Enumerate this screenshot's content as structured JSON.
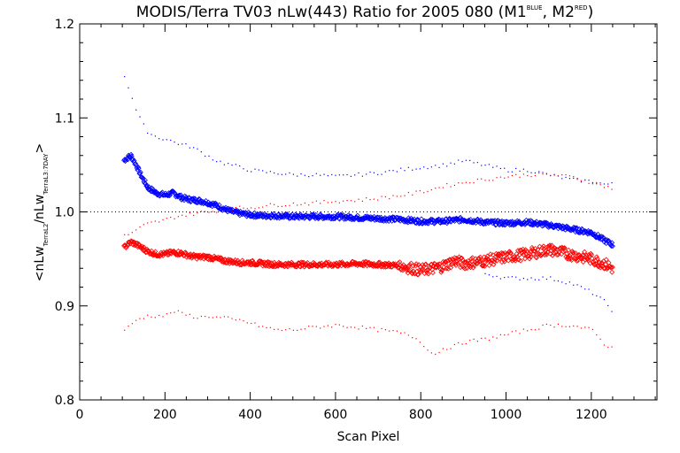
{
  "chart_data": {
    "type": "scatter",
    "title": {
      "main": "MODIS/Terra TV03 nLw(443) Ratio for 2005 080 (M1",
      "sup1": "BLUE",
      "mid": ", M2",
      "sup2": "RED",
      "end": ")"
    },
    "xlabel": "Scan Pixel",
    "ylabel": {
      "open": "<nLw",
      "sub1": "TerraL2",
      "slash": "/nLw",
      "sub2": "TerraL3:7DAY",
      "close": ">"
    },
    "xlim": [
      0,
      1354
    ],
    "ylim": [
      0.8,
      1.2
    ],
    "xticks": [
      "0",
      "200",
      "400",
      "600",
      "800",
      "1000",
      "1200"
    ],
    "xtick_values": [
      0,
      200,
      400,
      600,
      800,
      1000,
      1200
    ],
    "yticks": [
      "0.8",
      "0.9",
      "1.0",
      "1.1",
      "1.2"
    ],
    "ytick_values": [
      0.8,
      0.9,
      1.0,
      1.1,
      1.2
    ],
    "reference_line": 1.0,
    "series": [
      {
        "color": "#0000ff",
        "marker": "diamond",
        "x": [
          104,
          120,
          130,
          145,
          160,
          180,
          200,
          220,
          240,
          260,
          280,
          300,
          320,
          340,
          360,
          380,
          400,
          430,
          460,
          500,
          550,
          600,
          650,
          700,
          750,
          800,
          850,
          900,
          950,
          1000,
          1050,
          1100,
          1150,
          1200,
          1230,
          1250
        ],
        "y": [
          1.055,
          1.06,
          1.052,
          1.038,
          1.026,
          1.02,
          1.018,
          1.02,
          1.015,
          1.013,
          1.012,
          1.01,
          1.007,
          1.003,
          1.0,
          0.998,
          0.997,
          0.996,
          0.996,
          0.995,
          0.995,
          0.995,
          0.994,
          0.993,
          0.992,
          0.99,
          0.99,
          0.992,
          0.989,
          0.988,
          0.989,
          0.986,
          0.982,
          0.978,
          0.97,
          0.965
        ],
        "upper": [
          1.145,
          1.125,
          1.11,
          1.095,
          1.085,
          1.08,
          1.078,
          1.075,
          1.072,
          1.07,
          1.065,
          1.06,
          1.055,
          1.052,
          1.05,
          1.047,
          1.045,
          1.043,
          1.042,
          1.04,
          1.04,
          1.038,
          1.04,
          1.042,
          1.045,
          1.048,
          1.05,
          1.055,
          1.05,
          1.045,
          1.045,
          1.04,
          1.035,
          1.033,
          1.03,
          1.03
        ],
        "lower": [
          null,
          null,
          null,
          null,
          null,
          null,
          null,
          null,
          null,
          null,
          null,
          null,
          null,
          null,
          null,
          null,
          null,
          null,
          null,
          null,
          null,
          null,
          null,
          null,
          null,
          null,
          null,
          null,
          0.935,
          0.93,
          0.93,
          0.93,
          0.925,
          0.915,
          0.905,
          0.895
        ]
      },
      {
        "color": "#ff0000",
        "marker": "diamond",
        "x": [
          104,
          120,
          130,
          145,
          160,
          180,
          200,
          220,
          240,
          260,
          280,
          300,
          320,
          340,
          360,
          380,
          400,
          430,
          460,
          500,
          550,
          600,
          650,
          700,
          750,
          780,
          800,
          830,
          850,
          880,
          900,
          950,
          1000,
          1050,
          1100,
          1150,
          1200,
          1230,
          1250
        ],
        "y": [
          0.962,
          0.968,
          0.966,
          0.962,
          0.958,
          0.955,
          0.955,
          0.957,
          0.956,
          0.953,
          0.952,
          0.952,
          0.95,
          0.948,
          0.947,
          0.946,
          0.946,
          0.945,
          0.944,
          0.944,
          0.944,
          0.944,
          0.945,
          0.944,
          0.943,
          0.94,
          0.938,
          0.94,
          0.942,
          0.948,
          0.945,
          0.948,
          0.952,
          0.955,
          0.96,
          0.955,
          0.95,
          0.945,
          0.94
        ],
        "upper": [
          0.975,
          0.978,
          0.98,
          0.985,
          0.988,
          0.99,
          0.992,
          0.995,
          0.997,
          0.998,
          1.0,
          1.0,
          1.002,
          1.003,
          1.004,
          1.005,
          1.005,
          1.007,
          1.008,
          1.009,
          1.01,
          1.012,
          1.013,
          1.015,
          1.018,
          1.02,
          1.022,
          1.025,
          1.028,
          1.03,
          1.032,
          1.035,
          1.038,
          1.04,
          1.04,
          1.038,
          1.032,
          1.028,
          1.025
        ],
        "lower": [
          0.875,
          0.88,
          0.885,
          0.888,
          0.89,
          0.89,
          0.89,
          0.895,
          0.892,
          0.89,
          0.888,
          0.89,
          0.888,
          0.888,
          0.885,
          0.885,
          0.882,
          0.878,
          0.875,
          0.875,
          0.878,
          0.88,
          0.878,
          0.875,
          0.872,
          0.868,
          0.862,
          0.848,
          0.855,
          0.858,
          0.862,
          0.865,
          0.87,
          0.875,
          0.88,
          0.88,
          0.875,
          0.86,
          0.855
        ]
      }
    ]
  }
}
